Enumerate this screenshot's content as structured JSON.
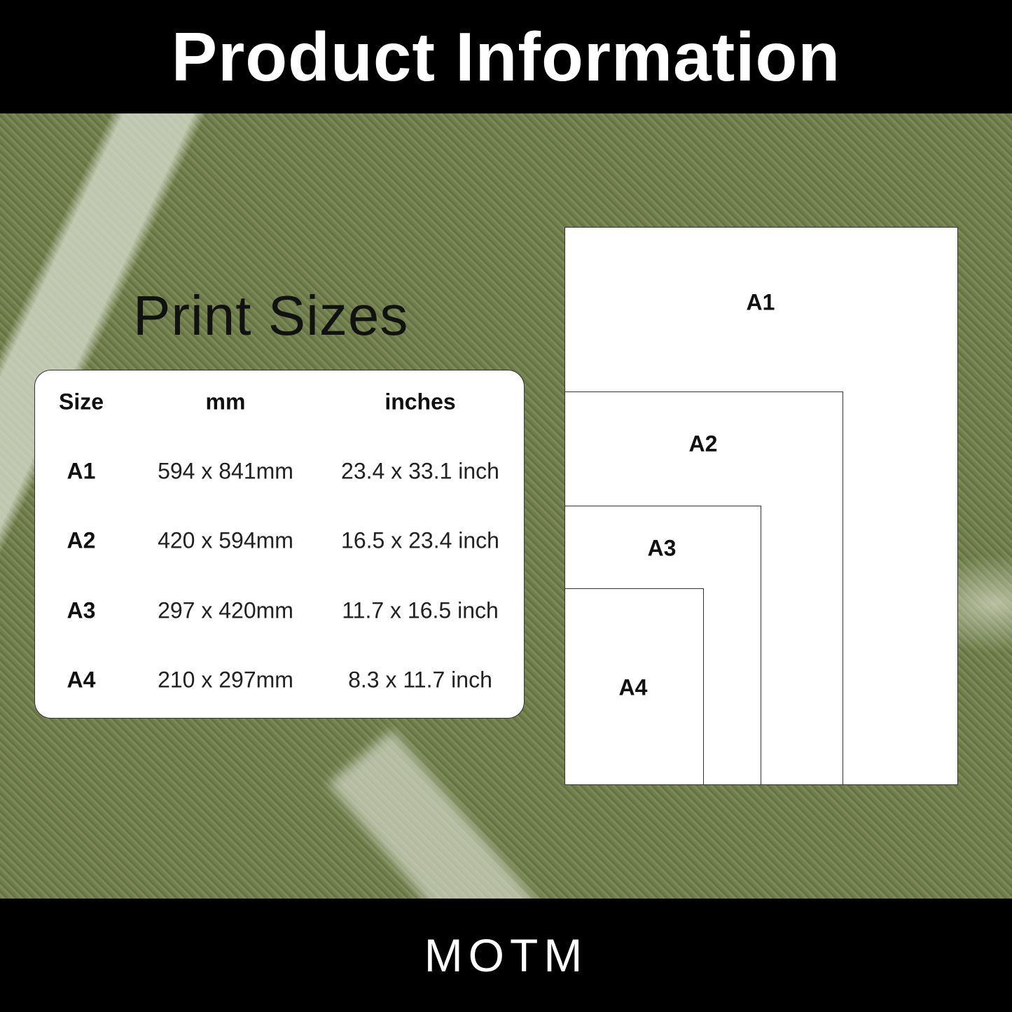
{
  "header": {
    "title": "Product Information"
  },
  "section_title": "Print Sizes",
  "table": {
    "headers": [
      "Size",
      "mm",
      "inches"
    ],
    "rows": [
      [
        "A1",
        "594 x 841mm",
        "23.4 x 33.1 inch"
      ],
      [
        "A2",
        "420 x 594mm",
        "16.5 x 23.4 inch"
      ],
      [
        "A3",
        "297 x 420mm",
        "11.7 x 16.5 inch"
      ],
      [
        "A4",
        "210 x 297mm",
        "8.3 x 11.7 inch"
      ]
    ]
  },
  "diagram": {
    "labels": [
      "A1",
      "A2",
      "A3",
      "A4"
    ]
  },
  "footer": {
    "logo": "MOTM"
  },
  "colors": {
    "bar": "#000000",
    "grass": "#6f7e4c",
    "card": "#ffffff"
  }
}
